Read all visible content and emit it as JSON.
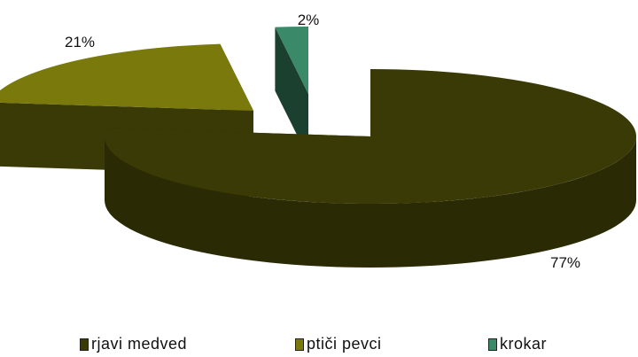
{
  "chart_data": {
    "type": "pie",
    "style": "3d-exploded",
    "categories": [
      "rjavi medved",
      "ptiči pevci",
      "krokar"
    ],
    "values": [
      77,
      21,
      2
    ],
    "value_labels": [
      "77%",
      "21%",
      "2%"
    ],
    "colors": {
      "top": [
        "#3a3a06",
        "#7a7a0c",
        "#3a8a6a"
      ],
      "side": [
        "#2a2a05",
        "#3a3a06",
        "#1c4030"
      ]
    },
    "legend_position": "bottom",
    "title": ""
  }
}
